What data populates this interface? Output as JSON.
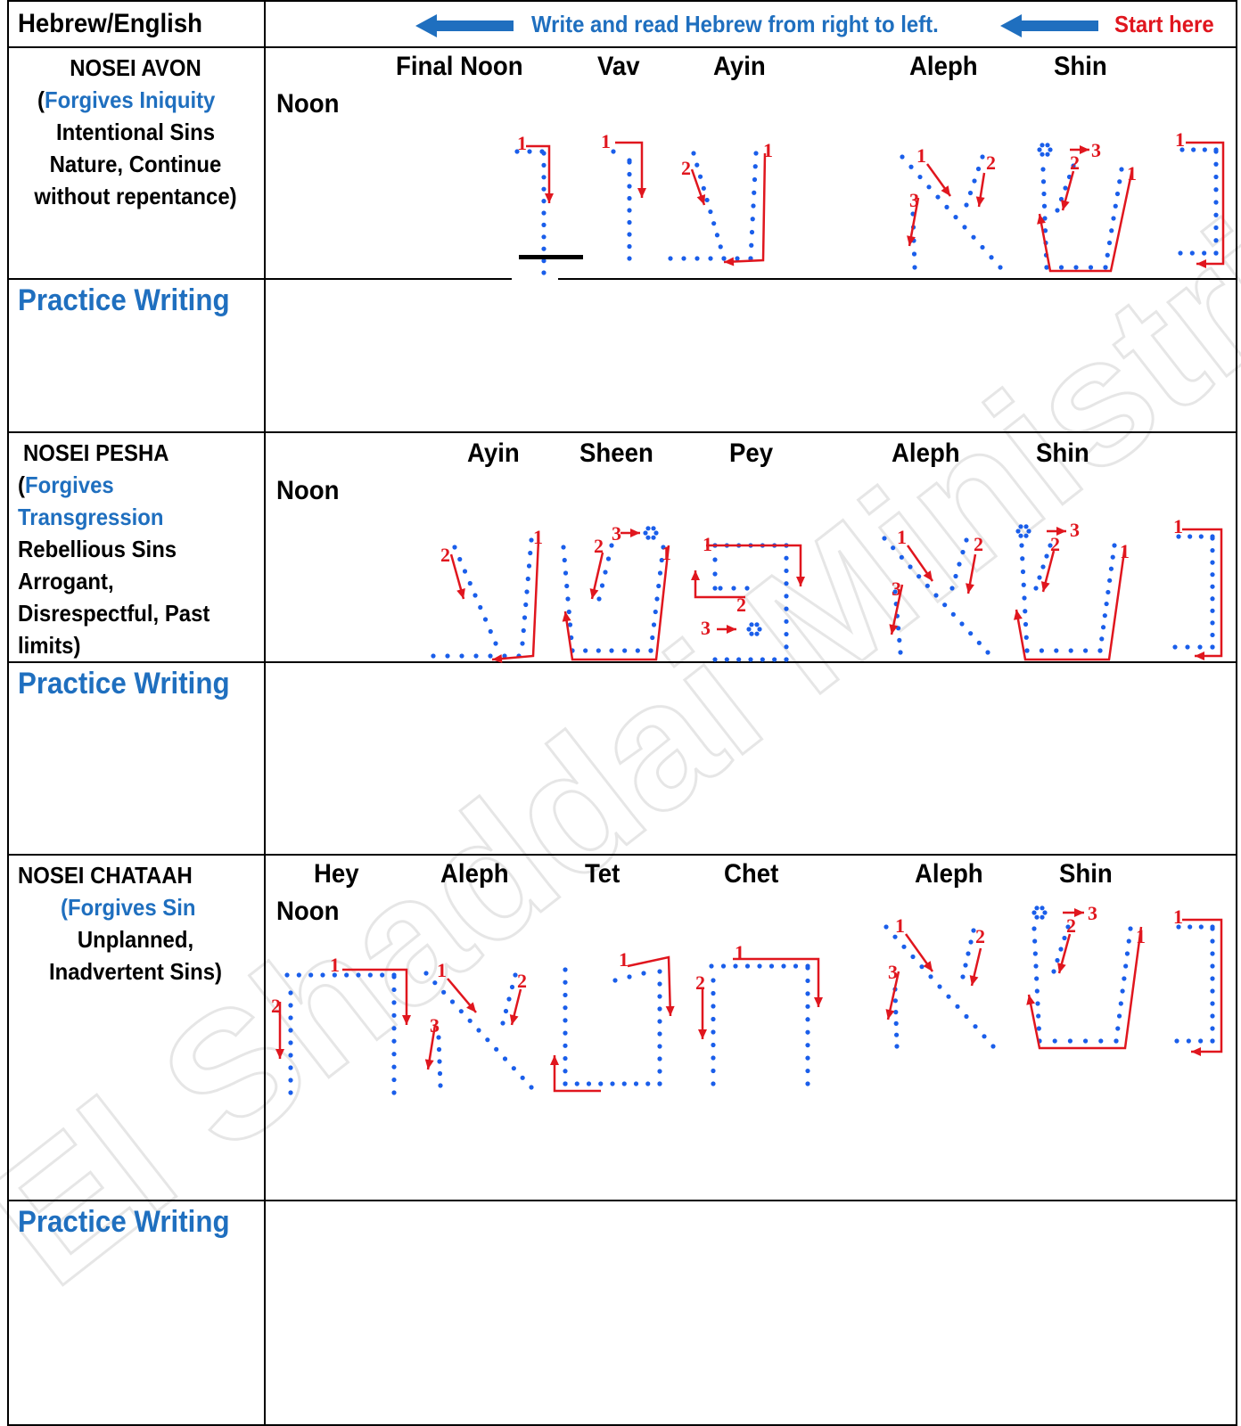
{
  "header": {
    "column_label": "Hebrew/English",
    "instruction": "Write and read Hebrew from right to left.",
    "start_label": "Start here",
    "accent_color": "#1f6fbf",
    "start_color": "#e0161e"
  },
  "rows": [
    {
      "title": "NOSEI AVON",
      "paren_open": "(",
      "meaning": "Forgives Iniquity",
      "desc_lines": [
        "Intentional Sins",
        "Nature, Continue",
        "without repentance)"
      ],
      "letters": [
        "Final Noon",
        "Vav",
        "Ayin",
        "Aleph",
        "Shin",
        "Noon"
      ]
    },
    {
      "title": "NOSEI PESHA",
      "paren_open": "(",
      "meaning_lines": [
        "Forgives",
        "Transgression"
      ],
      "desc_lines": [
        "Rebellious Sins",
        "Arrogant,",
        "Disrespectful, Past",
        "limits)"
      ],
      "letters": [
        "Ayin",
        "Sheen",
        "Pey",
        "Aleph",
        "Shin",
        "Noon"
      ]
    },
    {
      "title": "NOSEI CHATAAH",
      "meaning": "(Forgives Sin",
      "desc_lines": [
        "Unplanned,",
        "Inadvertent Sins)"
      ],
      "letters": [
        "Hey",
        "Aleph",
        "Tet",
        "Chet",
        "Aleph",
        "Shin",
        "Noon"
      ]
    }
  ],
  "practice_label": "Practice Writing",
  "stroke_numbers": [
    "1",
    "2",
    "3"
  ],
  "watermark": "El Shaddai Ministries",
  "colors": {
    "dots": "#1a5eea",
    "arrows": "#e0161e",
    "grid": "#000000"
  }
}
